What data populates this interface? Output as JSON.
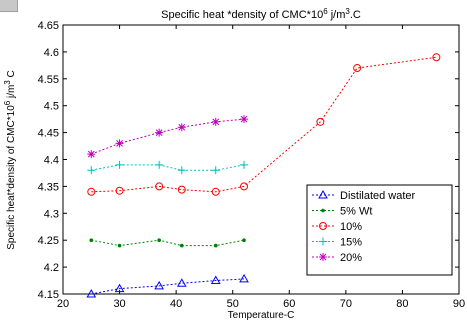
{
  "chart_data": {
    "type": "line",
    "title_main": "Specific heat *density of CMC*10",
    "title_sup": "6",
    "title_unit": " j/m",
    "title_unit_sup": "3",
    "title_tail": ".C",
    "xlabel": "Temperature-C",
    "ylabel_main": "Specific heat*density of CMC*10",
    "ylabel_sup1": "6",
    "ylabel_mid": " j/m",
    "ylabel_sup2": "3",
    "ylabel_tail": " C",
    "xlim": [
      20,
      90
    ],
    "ylim": [
      4.15,
      4.65
    ],
    "xticks": [
      20,
      30,
      40,
      50,
      60,
      70,
      80,
      90
    ],
    "yticks": [
      4.15,
      4.2,
      4.25,
      4.3,
      4.35,
      4.4,
      4.45,
      4.5,
      4.55,
      4.6,
      4.65
    ],
    "grid": false,
    "legend_position": "lower-right",
    "series": [
      {
        "name": "Distilated water",
        "color": "#0000ff",
        "marker": "triangle",
        "x": [
          25,
          30,
          37,
          41,
          47,
          52
        ],
        "y": [
          4.15,
          4.16,
          4.165,
          4.17,
          4.175,
          4.178
        ]
      },
      {
        "name": "5% Wt",
        "color": "#007f00",
        "marker": "dot",
        "x": [
          25,
          30,
          37,
          41,
          47,
          52
        ],
        "y": [
          4.25,
          4.24,
          4.25,
          4.24,
          4.24,
          4.25
        ]
      },
      {
        "name": "10%",
        "color": "#ff0000",
        "marker": "circle",
        "x": [
          25,
          30,
          37,
          41,
          47,
          52,
          65.5,
          72,
          86
        ],
        "y": [
          4.34,
          4.342,
          4.35,
          4.344,
          4.34,
          4.35,
          4.47,
          4.57,
          4.59
        ]
      },
      {
        "name": "15%",
        "color": "#00bfbf",
        "marker": "plus",
        "x": [
          25,
          30,
          37,
          41,
          47,
          52
        ],
        "y": [
          4.38,
          4.39,
          4.39,
          4.38,
          4.38,
          4.39
        ]
      },
      {
        "name": "20%",
        "color": "#bf00bf",
        "marker": "star",
        "x": [
          25,
          30,
          37,
          41,
          47,
          52
        ],
        "y": [
          4.41,
          4.43,
          4.45,
          4.46,
          4.47,
          4.475
        ]
      }
    ]
  }
}
